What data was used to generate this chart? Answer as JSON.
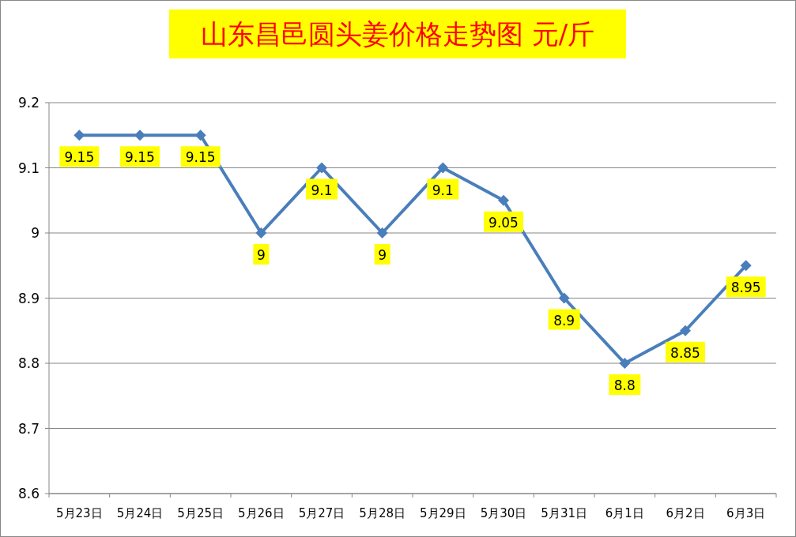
{
  "chart_data": {
    "type": "line",
    "title": "山东昌邑圆头姜价格走势图 元/斤",
    "categories": [
      "5月23日",
      "5月24日",
      "5月25日",
      "5月26日",
      "5月27日",
      "5月28日",
      "5月29日",
      "5月30日",
      "5月31日",
      "6月1日",
      "6月2日",
      "6月3日"
    ],
    "series": [
      {
        "color": "#4a7ebb",
        "values": [
          9.15,
          9.15,
          9.15,
          9,
          9.1,
          9,
          9.1,
          9.05,
          8.9,
          8.8,
          8.85,
          8.95
        ]
      }
    ],
    "ylim": [
      8.6,
      9.2
    ],
    "yticks": [
      8.6,
      8.7,
      8.8,
      8.9,
      9,
      9.1,
      9.2
    ],
    "grid": "y",
    "marker": "diamond",
    "line_style": "solid",
    "data_labels": true
  }
}
